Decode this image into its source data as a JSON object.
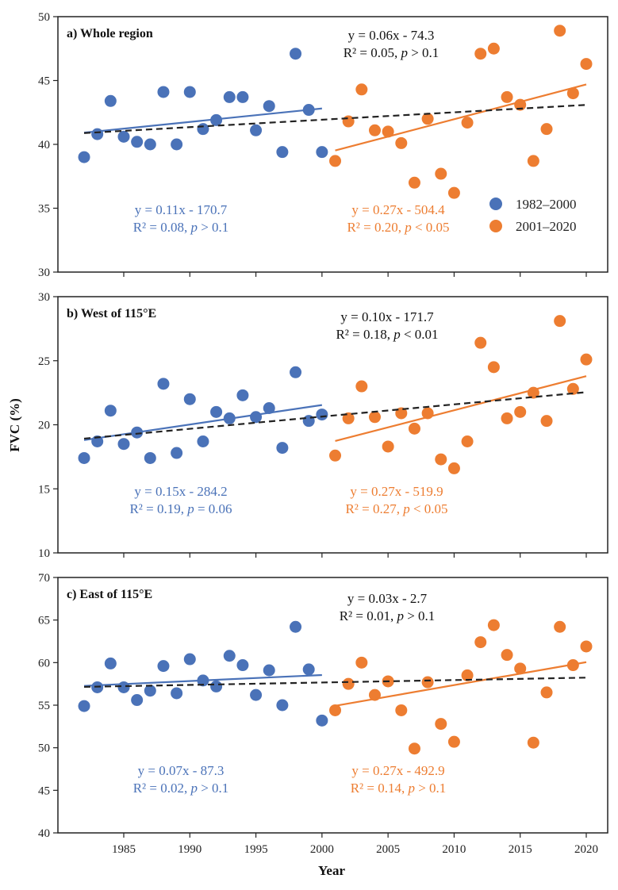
{
  "colors": {
    "period1": "#4a72b8",
    "period2": "#ed7d31",
    "overall": "#222222"
  },
  "p_symbol": "p",
  "chart_data": {
    "type": "scatter",
    "xlabel": "Year",
    "ylabel": "FVC (%)",
    "x_ticks": [
      1985,
      1990,
      1995,
      2000,
      2005,
      2010,
      2015,
      2020
    ],
    "xlim": [
      1979,
      2022
    ],
    "legend": {
      "placement": "bottom-right of panel a",
      "entries": [
        "1982–2000",
        "2001–2020"
      ]
    },
    "years": [
      1982,
      1983,
      1984,
      1985,
      1986,
      1987,
      1988,
      1989,
      1990,
      1991,
      1992,
      1993,
      1994,
      1995,
      1996,
      1997,
      1998,
      1999,
      2000,
      2001,
      2002,
      2003,
      2004,
      2005,
      2006,
      2007,
      2008,
      2009,
      2010,
      2011,
      2012,
      2013,
      2014,
      2015,
      2016,
      2017,
      2018,
      2019,
      2020
    ],
    "panels": [
      {
        "title": "a) Whole region",
        "ylim": [
          30,
          50
        ],
        "y_ticks": [
          30,
          35,
          40,
          45,
          50
        ],
        "values": [
          39.0,
          40.8,
          43.4,
          40.6,
          40.2,
          40.0,
          44.1,
          40.0,
          44.1,
          41.2,
          41.9,
          43.7,
          43.7,
          41.1,
          43.0,
          39.4,
          47.1,
          42.7,
          39.4,
          38.7,
          41.8,
          44.3,
          41.1,
          41.0,
          40.1,
          37.0,
          42.0,
          37.7,
          36.2,
          41.7,
          47.1,
          47.5,
          43.7,
          43.1,
          38.7,
          41.2,
          48.9,
          44.0,
          46.3
        ],
        "overall": {
          "eq": "y = 0.06x - 74.3",
          "r2": "R² = 0.05, ",
          "pval": " > 0.1"
        },
        "period1": {
          "eq": "y = 0.11x - 170.7",
          "r2": "R² = 0.08, ",
          "pval": " > 0.1"
        },
        "period2": {
          "eq": "y = 0.27x - 504.4",
          "r2": "R² = 0.20, ",
          "pval": " < 0.05"
        }
      },
      {
        "title": "b) West of 115°E",
        "ylim": [
          10,
          30
        ],
        "y_ticks": [
          10,
          15,
          20,
          25,
          30
        ],
        "values": [
          17.4,
          18.7,
          21.1,
          18.5,
          19.4,
          17.4,
          23.2,
          17.8,
          22.0,
          18.7,
          21.0,
          20.5,
          22.3,
          20.6,
          21.3,
          18.2,
          24.1,
          20.3,
          20.8,
          17.6,
          20.5,
          23.0,
          20.6,
          18.3,
          20.9,
          19.7,
          20.9,
          17.3,
          16.6,
          18.7,
          26.4,
          24.5,
          20.5,
          21.0,
          22.5,
          20.3,
          28.1,
          22.8,
          25.1
        ],
        "overall": {
          "eq": "y = 0.10x - 171.7",
          "r2": "R² = 0.18, ",
          "pval": " < 0.01"
        },
        "period1": {
          "eq": "y = 0.15x - 284.2",
          "r2": "R² = 0.19, ",
          "pval": " = 0.06"
        },
        "period2": {
          "eq": "y = 0.27x - 519.9",
          "r2": "R² = 0.27, ",
          "pval": " < 0.05"
        }
      },
      {
        "title": "c) East of 115°E",
        "ylim": [
          40,
          70
        ],
        "y_ticks": [
          40,
          45,
          50,
          55,
          60,
          65,
          70
        ],
        "values": [
          54.9,
          57.1,
          59.9,
          57.1,
          55.6,
          56.7,
          59.6,
          56.4,
          60.4,
          57.9,
          57.2,
          60.8,
          59.7,
          56.2,
          59.1,
          55.0,
          64.2,
          59.2,
          53.2,
          54.4,
          57.5,
          60.0,
          56.2,
          57.8,
          54.4,
          49.9,
          57.7,
          52.8,
          50.7,
          58.5,
          62.4,
          64.4,
          60.9,
          59.3,
          50.6,
          56.5,
          64.2,
          59.7,
          61.9
        ],
        "overall": {
          "eq": "y = 0.03x - 2.7",
          "r2": "R² = 0.01, ",
          "pval": " > 0.1"
        },
        "period1": {
          "eq": "y = 0.07x - 87.3",
          "r2": "R² = 0.02, ",
          "pval": " > 0.1"
        },
        "period2": {
          "eq": "y = 0.27x - 492.9",
          "r2": "R² = 0.14, ",
          "pval": " > 0.1"
        }
      }
    ]
  }
}
